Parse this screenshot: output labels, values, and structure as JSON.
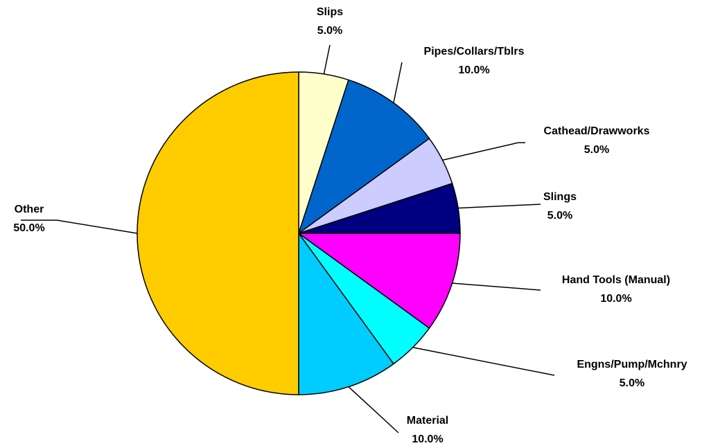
{
  "chart_data": {
    "type": "pie",
    "categories": [
      "Slips",
      "Pipes/Collars/Tblrs",
      "Cathead/Drawworks",
      "Slings",
      "Hand Tools (Manual)",
      "Engns/Pump/Mchnry",
      "Material",
      "Other"
    ],
    "values": [
      5,
      10,
      5,
      5,
      10,
      5,
      10,
      50
    ],
    "value_labels": [
      "5.0%",
      "10.0%",
      "5.0%",
      "5.0%",
      "10.0%",
      "5.0%",
      "10.0%",
      "50.0%"
    ],
    "colors": [
      "#FFFFCC",
      "#0066CC",
      "#CCCCFF",
      "#000080",
      "#FF00FF",
      "#00FFFF",
      "#00CCFF",
      "#FFCC00"
    ]
  }
}
